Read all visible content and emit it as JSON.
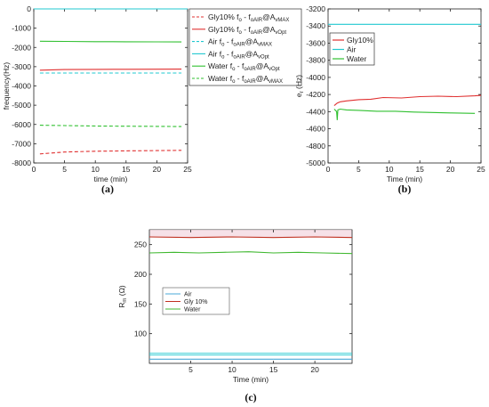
{
  "chart_data": [
    {
      "type": "line",
      "caption": "(a)",
      "xlabel": "time (min)",
      "ylabel": "frequency(Hz)",
      "xlim": [
        0,
        25
      ],
      "ylim": [
        -8000,
        0
      ],
      "xticks": [
        0,
        5,
        10,
        15,
        20,
        25
      ],
      "yticks": [
        -8000,
        -7000,
        -6000,
        -5000,
        -4000,
        -3000,
        -2000,
        -1000,
        0
      ],
      "legend": "outside-right",
      "series": [
        {
          "name": "Gly10% fo - foAIR@AvMAX",
          "main": "Gly10% f",
          "sub": "o",
          "mid": " - f",
          "sub2": "oAIR",
          "tail": "@A",
          "sub3": "vMAX",
          "color": "#e03030",
          "dash": true,
          "x": [
            1,
            5,
            10,
            15,
            20,
            24
          ],
          "y": [
            -7530,
            -7430,
            -7390,
            -7370,
            -7355,
            -7345
          ]
        },
        {
          "name": "Gly10% fo - foAIR@AvOpt",
          "main": "Gly10% f",
          "sub": "o",
          "mid": " - f",
          "sub2": "oAIR",
          "tail": "@A",
          "sub3": "vOpt",
          "color": "#e03030",
          "dash": false,
          "x": [
            1,
            5,
            10,
            15,
            20,
            24
          ],
          "y": [
            -3180,
            -3150,
            -3140,
            -3135,
            -3130,
            -3125
          ]
        },
        {
          "name": "Air fo - foAIR@AvMAX",
          "main": "Air f",
          "sub": "o",
          "mid": " - f",
          "sub2": "oAIR",
          "tail": "@A",
          "sub3": "vMAX",
          "color": "#20c8d0",
          "dash": true,
          "x": [
            1,
            5,
            10,
            15,
            20,
            24
          ],
          "y": [
            -3330,
            -3330,
            -3330,
            -3330,
            -3330,
            -3330
          ]
        },
        {
          "name": "Air fo - foAIR@AvOpt",
          "main": "Air f",
          "sub": "o",
          "mid": " - f",
          "sub2": "oAIR",
          "tail": "@A",
          "sub3": "vOpt",
          "color": "#20c8d0",
          "dash": false,
          "x": [
            0,
            5,
            10,
            15,
            20,
            25
          ],
          "y": [
            0,
            0,
            0,
            0,
            0,
            0
          ]
        },
        {
          "name": "Water fo - foAIR@AvOpt",
          "main": "Water f",
          "sub": "o",
          "mid": " - f",
          "sub2": "oAIR",
          "tail": "@A",
          "sub3": "vOpt",
          "color": "#30c030",
          "dash": false,
          "x": [
            1,
            5,
            10,
            15,
            20,
            24
          ],
          "y": [
            -1680,
            -1690,
            -1700,
            -1705,
            -1710,
            -1715
          ]
        },
        {
          "name": "Water fo - foAIR@AvMAX",
          "main": "Water f",
          "sub": "o",
          "mid": " - f",
          "sub2": "oAIR",
          "tail": "@A",
          "sub3": "vMAX",
          "color": "#30c030",
          "dash": true,
          "x": [
            1,
            5,
            10,
            15,
            20,
            24
          ],
          "y": [
            -6040,
            -6060,
            -6080,
            -6090,
            -6100,
            -6110
          ]
        }
      ]
    },
    {
      "type": "line",
      "caption": "(b)",
      "xlabel": "Time (min)",
      "ylabel": "er (Hz)",
      "ylabel_main": "e",
      "ylabel_sub": "r",
      "ylabel_tail": " (Hz)",
      "xlim": [
        0,
        25
      ],
      "ylim": [
        -5000,
        -3200
      ],
      "xticks": [
        0,
        5,
        10,
        15,
        20,
        25
      ],
      "yticks": [
        -5000,
        -4800,
        -4600,
        -4400,
        -4200,
        -4000,
        -3800,
        -3600,
        -3400,
        -3200
      ],
      "legend": "upper-left",
      "series": [
        {
          "name": "Gly10%",
          "color": "#e03030",
          "x": [
            1,
            1.5,
            2,
            3,
            5,
            7,
            9,
            12,
            15,
            18,
            21,
            24,
            25
          ],
          "y": [
            -4330,
            -4300,
            -4285,
            -4275,
            -4260,
            -4255,
            -4235,
            -4240,
            -4225,
            -4220,
            -4225,
            -4215,
            -4210
          ]
        },
        {
          "name": "Air",
          "color": "#20c8d0",
          "x": [
            0,
            5,
            10,
            15,
            20,
            25
          ],
          "y": [
            -3380,
            -3380,
            -3380,
            -3380,
            -3380,
            -3380
          ]
        },
        {
          "name": "Water",
          "color": "#30c030",
          "x": [
            1,
            1.4,
            1.5,
            1.6,
            2,
            3,
            5,
            8,
            11,
            14,
            17,
            20,
            24
          ],
          "y": [
            -4370,
            -4400,
            -4500,
            -4380,
            -4370,
            -4380,
            -4385,
            -4395,
            -4395,
            -4405,
            -4410,
            -4415,
            -4420
          ]
        }
      ]
    },
    {
      "type": "line",
      "caption": "(c)",
      "xlabel": "Time (min)",
      "ylabel": "Rm (Ω)",
      "ylabel_main": "R",
      "ylabel_sub": "m",
      "ylabel_tail": " (Ω)",
      "xlim": [
        0,
        24.5
      ],
      "ylim": [
        50,
        275
      ],
      "xticks": [
        5,
        10,
        15,
        20
      ],
      "yticks": [
        100,
        150,
        200,
        250
      ],
      "legend": "center-left",
      "series": [
        {
          "name": "Air",
          "color": "#4aa8d8",
          "x": [
            0,
            5,
            10,
            15,
            20,
            24.5
          ],
          "y": [
            57,
            57,
            57,
            57,
            57,
            57
          ]
        },
        {
          "name": "Gly 10%",
          "color": "#c03020",
          "x": [
            0,
            5,
            10,
            15,
            20,
            24.5
          ],
          "y": [
            263,
            262,
            263,
            262,
            263,
            262
          ]
        },
        {
          "name": "Water",
          "color": "#40b830",
          "x": [
            0,
            3,
            6,
            9,
            12,
            15,
            18,
            21,
            24.5
          ],
          "y": [
            236,
            237,
            236,
            237,
            238,
            236,
            237,
            236,
            235
          ]
        }
      ],
      "decor": [
        {
          "color": "#20c8d0",
          "y": 67
        },
        {
          "color": "#20c8d0",
          "y": 64
        }
      ]
    }
  ]
}
